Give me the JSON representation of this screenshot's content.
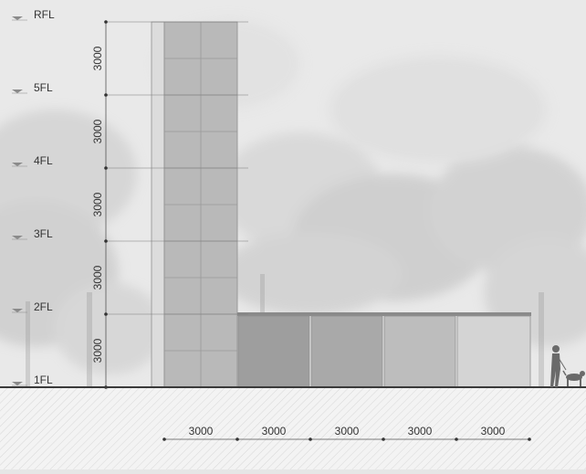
{
  "drawing": {
    "floors": [
      {
        "label": "RFL"
      },
      {
        "label": "5FL"
      },
      {
        "label": "4FL"
      },
      {
        "label": "3FL"
      },
      {
        "label": "2FL"
      },
      {
        "label": "1FL"
      }
    ],
    "vertical_dimensions": [
      "3000",
      "3000",
      "3000",
      "3000",
      "3000"
    ],
    "horizontal_dimensions": [
      "3000",
      "3000",
      "3000",
      "3000",
      "3000"
    ],
    "colors": {
      "tower": "#b9b9b9",
      "tower_edge": "#dcdcdc",
      "annex_panels": [
        "#9e9e9e",
        "#a9a9a9",
        "#bdbdbd",
        "#d4d4d4"
      ],
      "ground": "#3a3a3a",
      "text": "#333333",
      "grid": "#7a7a7a",
      "foliage": "#d2d2d2"
    },
    "icons": [
      "person-walking-dog-icon",
      "level-marker-icon"
    ]
  }
}
